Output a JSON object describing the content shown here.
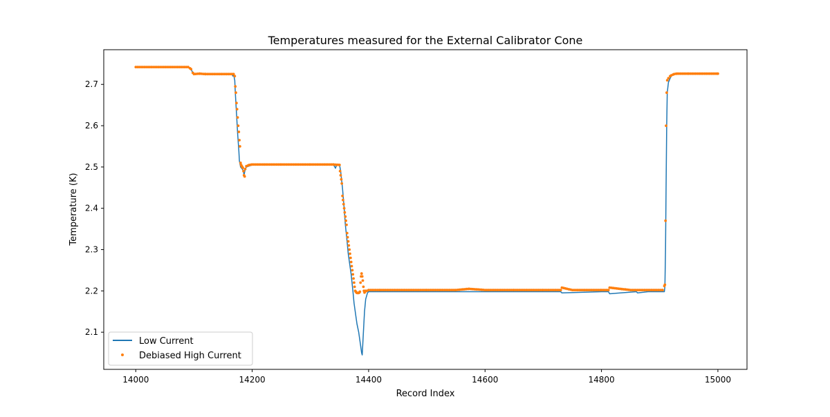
{
  "chart_data": {
    "type": "line",
    "title": "Temperatures measured for the External Calibrator Cone",
    "xlabel": "Record Index",
    "ylabel": "Temperature (K)",
    "xlim": [
      13945,
      15050
    ],
    "ylim": [
      2.01,
      2.784
    ],
    "xticks": [
      14000,
      14200,
      14400,
      14600,
      14800,
      15000
    ],
    "yticks": [
      2.1,
      2.2,
      2.3,
      2.4,
      2.5,
      2.6,
      2.7
    ],
    "xtick_labels": [
      "14000",
      "14200",
      "14400",
      "14600",
      "14800",
      "15000"
    ],
    "ytick_labels": [
      "2.1",
      "2.2",
      "2.3",
      "2.4",
      "2.5",
      "2.6",
      "2.7"
    ],
    "grid": false,
    "legend_position": "lower-left",
    "series": [
      {
        "name": "Low Current",
        "style": "line",
        "color": "#1f77b4",
        "x": [
          14000,
          14090,
          14095,
          14098,
          14105,
          14120,
          14150,
          14165,
          14167,
          14168,
          14170,
          14171,
          14173,
          14175,
          14177,
          14178,
          14180,
          14183,
          14185,
          14186,
          14188,
          14190,
          14200,
          14250,
          14300,
          14340,
          14343,
          14345,
          14350,
          14352,
          14355,
          14358,
          14360,
          14363,
          14365,
          14368,
          14370,
          14373,
          14375,
          14378,
          14380,
          14383,
          14385,
          14387,
          14388,
          14389,
          14391,
          14393,
          14395,
          14398,
          14400,
          14420,
          14500,
          14600,
          14700,
          14730,
          14732,
          14800,
          14812,
          14814,
          14860,
          14862,
          14880,
          14905,
          14908,
          14909,
          14910,
          14911,
          14912,
          14913,
          14915,
          14918,
          14920,
          14925,
          14930,
          14950,
          15000
        ],
        "y": [
          2.742,
          2.742,
          2.737,
          2.728,
          2.725,
          2.725,
          2.725,
          2.725,
          2.72,
          2.724,
          2.71,
          2.68,
          2.63,
          2.58,
          2.54,
          2.515,
          2.5,
          2.495,
          2.49,
          2.48,
          2.495,
          2.5,
          2.505,
          2.505,
          2.505,
          2.505,
          2.497,
          2.505,
          2.505,
          2.49,
          2.45,
          2.4,
          2.36,
          2.32,
          2.29,
          2.26,
          2.24,
          2.2,
          2.17,
          2.14,
          2.12,
          2.1,
          2.08,
          2.06,
          2.05,
          2.045,
          2.1,
          2.15,
          2.18,
          2.195,
          2.198,
          2.198,
          2.198,
          2.198,
          2.198,
          2.198,
          2.195,
          2.198,
          2.198,
          2.193,
          2.198,
          2.195,
          2.198,
          2.198,
          2.198,
          2.21,
          2.3,
          2.45,
          2.6,
          2.68,
          2.705,
          2.715,
          2.72,
          2.725,
          2.726,
          2.726,
          2.726
        ]
      },
      {
        "name": "Debiased High Current",
        "style": "markers",
        "color": "#ff7f0e",
        "x": [
          14000,
          14090,
          14095,
          14098,
          14100,
          14110,
          14120,
          14150,
          14168,
          14170,
          14171,
          14172,
          14173,
          14174,
          14175,
          14176,
          14177,
          14178,
          14179,
          14180,
          14181,
          14182,
          14183,
          14184,
          14185,
          14186,
          14187,
          14188,
          14190,
          14195,
          14200,
          14250,
          14300,
          14340,
          14350,
          14351,
          14352,
          14353,
          14354,
          14355,
          14356,
          14357,
          14358,
          14359,
          14360,
          14361,
          14362,
          14363,
          14364,
          14365,
          14366,
          14367,
          14368,
          14369,
          14370,
          14371,
          14372,
          14373,
          14374,
          14375,
          14376,
          14377,
          14378,
          14379,
          14380,
          14381,
          14382,
          14383,
          14384,
          14385,
          14386,
          14387,
          14388,
          14389,
          14390,
          14391,
          14392,
          14393,
          14394,
          14395,
          14397,
          14400,
          14420,
          14450,
          14500,
          14550,
          14573,
          14600,
          14650,
          14700,
          14730,
          14732,
          14750,
          14800,
          14812,
          14814,
          14850,
          14880,
          14905,
          14909,
          14910,
          14911,
          14912,
          14913,
          14915,
          14918,
          14920,
          14925,
          14930,
          14950,
          15000
        ],
        "y": [
          2.742,
          2.742,
          2.737,
          2.728,
          2.725,
          2.726,
          2.725,
          2.725,
          2.725,
          2.72,
          2.695,
          2.68,
          2.655,
          2.64,
          2.62,
          2.6,
          2.585,
          2.565,
          2.55,
          2.51,
          2.505,
          2.502,
          2.5,
          2.498,
          2.49,
          2.48,
          2.477,
          2.495,
          2.502,
          2.505,
          2.506,
          2.506,
          2.506,
          2.506,
          2.505,
          2.49,
          2.48,
          2.47,
          2.46,
          2.43,
          2.42,
          2.41,
          2.4,
          2.39,
          2.38,
          2.37,
          2.36,
          2.34,
          2.33,
          2.32,
          2.31,
          2.3,
          2.29,
          2.28,
          2.27,
          2.26,
          2.25,
          2.24,
          2.23,
          2.22,
          2.21,
          2.2,
          2.198,
          2.196,
          2.195,
          2.195,
          2.195,
          2.195,
          2.196,
          2.198,
          2.22,
          2.235,
          2.242,
          2.235,
          2.225,
          2.21,
          2.2,
          2.196,
          2.198,
          2.2,
          2.2,
          2.202,
          2.202,
          2.202,
          2.202,
          2.202,
          2.205,
          2.202,
          2.202,
          2.202,
          2.202,
          2.208,
          2.202,
          2.202,
          2.202,
          2.208,
          2.202,
          2.202,
          2.202,
          2.215,
          2.37,
          2.6,
          2.68,
          2.71,
          2.715,
          2.72,
          2.722,
          2.725,
          2.726,
          2.726,
          2.726
        ]
      }
    ]
  }
}
